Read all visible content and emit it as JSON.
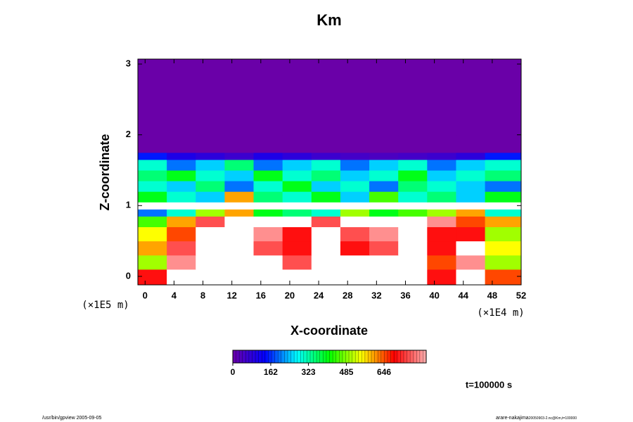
{
  "chart_data": {
    "type": "heatmap",
    "title": "Km",
    "xlabel": "X-coordinate",
    "ylabel": "Z-coordinate",
    "xunit": "(×1E4 m)",
    "yunit": "(×1E5 m)",
    "xlim": [
      -1,
      52
    ],
    "ylim": [
      -0.12,
      3.07
    ],
    "xticks": [
      0,
      4,
      8,
      12,
      16,
      20,
      24,
      28,
      32,
      36,
      40,
      44,
      48,
      52
    ],
    "yticks": [
      0,
      1,
      2,
      3
    ],
    "xbins": [
      -1,
      3,
      7,
      11,
      15,
      19,
      23,
      27,
      31,
      35,
      39,
      43,
      47,
      52
    ],
    "ybins": [
      -0.12,
      0.1,
      0.3,
      0.5,
      0.7,
      0.85,
      0.95,
      1.05,
      1.2,
      1.35,
      1.5,
      1.65,
      1.75,
      2,
      3.07
    ],
    "values": [
      [
        700,
        850,
        900,
        900,
        900,
        900,
        900,
        900,
        900,
        900,
        700,
        900,
        650
      ],
      [
        500,
        800,
        900,
        900,
        900,
        750,
        900,
        850,
        900,
        900,
        650,
        800,
        500
      ],
      [
        600,
        750,
        900,
        900,
        750,
        700,
        850,
        700,
        750,
        900,
        700,
        850,
        550
      ],
      [
        550,
        650,
        900,
        900,
        800,
        700,
        900,
        750,
        800,
        900,
        700,
        700,
        500
      ],
      [
        450,
        600,
        750,
        900,
        900,
        900,
        750,
        900,
        900,
        900,
        800,
        650,
        600
      ],
      [
        200,
        300,
        500,
        600,
        400,
        350,
        300,
        500,
        400,
        450,
        500,
        600,
        300
      ],
      [
        900,
        900,
        900,
        900,
        900,
        900,
        900,
        900,
        900,
        900,
        900,
        900,
        900
      ],
      [
        400,
        300,
        250,
        600,
        350,
        300,
        400,
        250,
        450,
        300,
        350,
        250,
        400
      ],
      [
        300,
        250,
        350,
        200,
        300,
        400,
        250,
        300,
        200,
        350,
        300,
        250,
        200
      ],
      [
        350,
        400,
        300,
        250,
        400,
        300,
        350,
        250,
        300,
        400,
        250,
        300,
        350
      ],
      [
        300,
        200,
        250,
        350,
        200,
        250,
        300,
        200,
        250,
        300,
        200,
        250,
        300
      ],
      [
        150,
        100,
        80,
        60,
        100,
        80,
        60,
        50,
        40,
        50,
        60,
        80,
        150
      ],
      [
        0,
        0,
        0,
        0,
        0,
        0,
        0,
        0,
        0,
        0,
        0,
        0,
        0
      ],
      [
        0,
        0,
        0,
        0,
        0,
        0,
        0,
        0,
        0,
        0,
        0,
        0,
        0
      ]
    ],
    "colorbar": {
      "lim": [
        0,
        826
      ],
      "ticks": [
        0,
        162,
        323,
        485,
        646
      ],
      "colors": [
        "#6a00a8",
        "#0000ff",
        "#00ffff",
        "#00ff00",
        "#ffff00",
        "#ff0000",
        "#ffb0b0"
      ],
      "over_color": "#ffffff"
    },
    "annotation": "t=100000 s",
    "footer_left": "/usr/bin/gpview 2005-09-05",
    "footer_right": "arare-nakajima",
    "footer_right_sub": "20050903-2.nc@Km,t=100000"
  }
}
